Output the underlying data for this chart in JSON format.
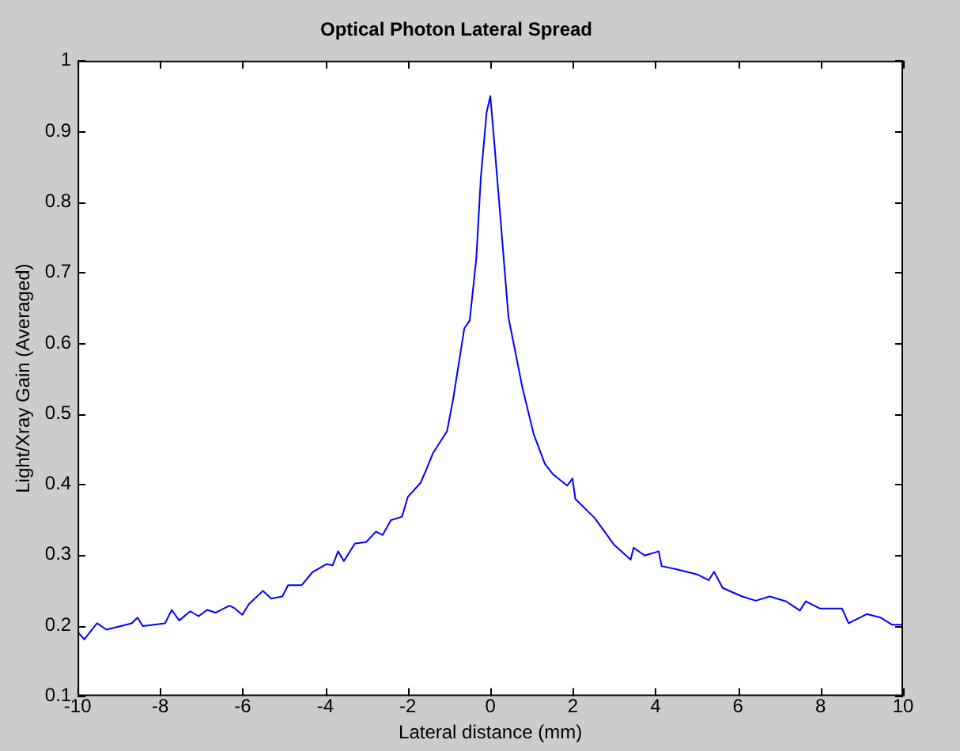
{
  "chart_data": {
    "type": "line",
    "title": "Optical Photon Lateral Spread",
    "xlabel": "Lateral distance (mm)",
    "ylabel": "Light/Xray Gain (Averaged)",
    "xlim": [
      -10,
      10
    ],
    "xticks": [
      -10,
      -8,
      -6,
      -4,
      -2,
      0,
      2,
      4,
      6,
      8,
      10
    ],
    "ylim": [
      0.1,
      1
    ],
    "yticks": [
      0.1,
      0.2,
      0.3,
      0.4,
      0.5,
      0.6,
      0.7,
      0.8,
      0.9,
      1
    ],
    "grid": false,
    "legend": false,
    "marker": "none",
    "line_style": "solid",
    "series": [
      {
        "color": "#0000ff",
        "x": [
          -10,
          -9.84,
          -9.53,
          -9.3,
          -8.69,
          -8.55,
          -8.42,
          -7.88,
          -7.72,
          -7.54,
          -7.27,
          -7.07,
          -6.86,
          -6.66,
          -6.32,
          -6.19,
          -6.01,
          -5.85,
          -5.51,
          -5.31,
          -5.04,
          -4.9,
          -4.57,
          -4.3,
          -3.96,
          -3.82,
          -3.69,
          -3.55,
          -3.28,
          -3.01,
          -2.77,
          -2.61,
          -2.41,
          -2.14,
          -2,
          -1.69,
          -1.55,
          -1.39,
          -1.05,
          -0.9,
          -0.63,
          -0.5,
          -0.34,
          -0.23,
          -0.09,
          0,
          0.11,
          0.44,
          0.78,
          1.05,
          1.32,
          1.52,
          1.86,
          1.99,
          2.06,
          2.53,
          3,
          3.4,
          3.47,
          3.74,
          4.08,
          4.15,
          4.48,
          5.02,
          5.29,
          5.42,
          5.63,
          6.1,
          6.43,
          6.77,
          7.17,
          7.5,
          7.64,
          7.98,
          8.52,
          8.68,
          9.12,
          9.46,
          9.73,
          10
        ],
        "values": [
          0.191,
          0.18,
          0.203,
          0.194,
          0.203,
          0.211,
          0.199,
          0.203,
          0.222,
          0.207,
          0.22,
          0.213,
          0.222,
          0.218,
          0.228,
          0.224,
          0.215,
          0.23,
          0.249,
          0.238,
          0.241,
          0.257,
          0.257,
          0.276,
          0.287,
          0.285,
          0.305,
          0.291,
          0.316,
          0.318,
          0.333,
          0.328,
          0.349,
          0.354,
          0.382,
          0.402,
          0.421,
          0.444,
          0.475,
          0.521,
          0.621,
          0.632,
          0.72,
          0.835,
          0.927,
          0.95,
          0.874,
          0.636,
          0.536,
          0.471,
          0.429,
          0.414,
          0.398,
          0.408,
          0.379,
          0.352,
          0.314,
          0.293,
          0.31,
          0.299,
          0.305,
          0.284,
          0.28,
          0.272,
          0.264,
          0.276,
          0.253,
          0.241,
          0.235,
          0.241,
          0.234,
          0.221,
          0.234,
          0.224,
          0.224,
          0.203,
          0.216,
          0.211,
          0.201,
          0.201
        ]
      }
    ]
  }
}
